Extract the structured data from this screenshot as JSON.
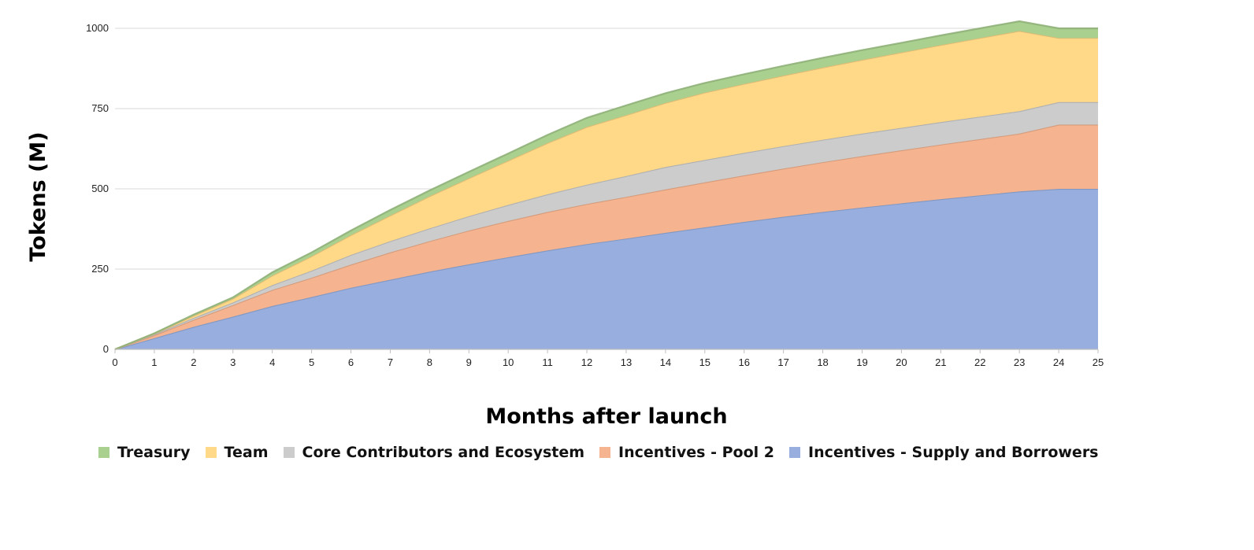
{
  "chart_data": {
    "type": "area",
    "stacked": true,
    "title": "",
    "xlabel": "Months after launch",
    "ylabel": "Tokens (M)",
    "x": [
      0,
      1,
      2,
      3,
      4,
      5,
      6,
      7,
      8,
      9,
      10,
      11,
      12,
      13,
      14,
      15,
      16,
      17,
      18,
      19,
      20,
      21,
      22,
      23,
      24,
      25
    ],
    "xlim": [
      0,
      25
    ],
    "ylim": [
      0,
      1000
    ],
    "yticks": [
      0,
      250,
      500,
      750,
      1000
    ],
    "grid": "horizontal",
    "legend_position": "bottom",
    "series": [
      {
        "name": "Incentives - Supply and Borrowers",
        "color": "#97aedf",
        "values": [
          0,
          35,
          70,
          102,
          135,
          163,
          192,
          217,
          242,
          265,
          287,
          308,
          328,
          345,
          363,
          380,
          397,
          413,
          428,
          442,
          455,
          468,
          480,
          492,
          500,
          500
        ]
      },
      {
        "name": "Incentives - Pool 2",
        "color": "#f5b48f",
        "values": [
          0,
          9,
          22,
          36,
          50,
          60,
          72,
          85,
          95,
          105,
          113,
          120,
          125,
          130,
          135,
          140,
          145,
          150,
          155,
          160,
          165,
          170,
          175,
          180,
          200,
          200
        ]
      },
      {
        "name": "Core Contributors and Ecosystem",
        "color": "#cccccc",
        "values": [
          0,
          3,
          6,
          8,
          15,
          22,
          30,
          35,
          40,
          45,
          50,
          55,
          60,
          65,
          70,
          70,
          70,
          70,
          70,
          70,
          70,
          70,
          70,
          70,
          70,
          70
        ]
      },
      {
        "name": "Team",
        "color": "#ffd987",
        "values": [
          0,
          2,
          7,
          12,
          30,
          45,
          62,
          80,
          100,
          118,
          138,
          160,
          180,
          190,
          200,
          210,
          215,
          220,
          225,
          230,
          235,
          240,
          245,
          250,
          200,
          200
        ]
      },
      {
        "name": "Treasury",
        "color": "#a9d08e",
        "values": [
          0,
          1,
          3,
          4,
          10,
          12,
          14,
          17,
          18,
          20,
          22,
          25,
          28,
          30,
          30,
          30,
          30,
          30,
          30,
          30,
          30,
          30,
          30,
          30,
          30,
          30
        ]
      }
    ],
    "legend_order": [
      "Treasury",
      "Team",
      "Core Contributors and Ecosystem",
      "Incentives - Pool 2",
      "Incentives - Supply and Borrowers"
    ]
  }
}
